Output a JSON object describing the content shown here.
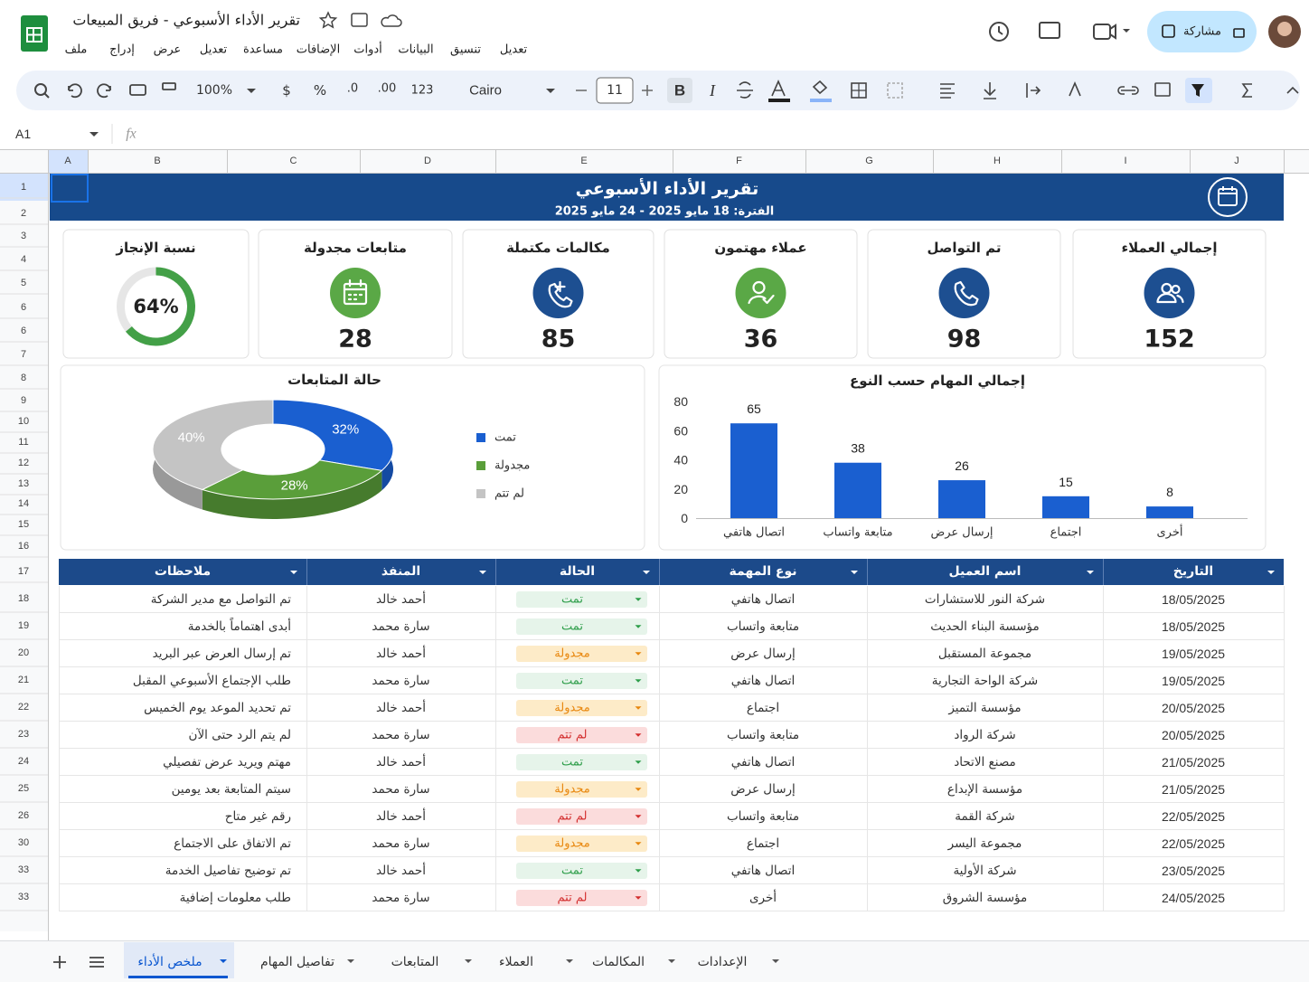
{
  "header": {
    "title": "تقرير الأداء الأسبوعي - فريق المبيعات",
    "menu": [
      "ملف",
      "إدراج",
      "عرض",
      "تعديل",
      "مساعدة",
      "الإضافات",
      "أدوات",
      "البيانات",
      "تنسيق",
      "تعديل"
    ],
    "share": "مشاركة"
  },
  "toolbar": {
    "zoom": "100%",
    "currency": "$",
    "percent": "%",
    "decrease_decimals": ".0",
    "increase_decimals": ".00",
    "number_format": "123",
    "font": "Cairo",
    "font_size": 11,
    "bold": "B",
    "italic": "I"
  },
  "formula_bar": {
    "cell": "A1",
    "fx": "fx"
  },
  "grid": {
    "columns": [
      "A",
      "B",
      "C",
      "D",
      "E",
      "F",
      "G",
      "H",
      "I",
      "J"
    ],
    "rows": [
      1,
      2,
      3,
      4,
      5,
      6,
      6,
      7,
      8,
      9,
      10,
      11,
      12,
      13,
      14,
      15,
      16,
      17,
      18,
      19,
      20,
      21,
      22,
      23,
      24,
      25,
      26,
      30,
      33,
      33
    ]
  },
  "banner": {
    "title": "تقرير الأداء الأسبوعي",
    "period": "الفترة: 18 مايو 2025 - 24 مايو 2025"
  },
  "kpis": [
    {
      "label": "إجمالي العملاء",
      "value": 152,
      "color": "#1d4f91"
    },
    {
      "label": "تم التواصل",
      "value": 98,
      "color": "#1d4f91"
    },
    {
      "label": "عملاء مهتمون",
      "value": 36,
      "color": "#5aa846"
    },
    {
      "label": "مكالمات مكتملة",
      "value": 85,
      "color": "#1d4f91"
    },
    {
      "label": "متابعات مجدولة",
      "value": 28,
      "color": "#5aa846"
    },
    {
      "label": "نسبة الإنجاز",
      "value": 64,
      "value_label": "64%",
      "color": "#43a047",
      "gauge": true
    }
  ],
  "chart_data": [
    {
      "type": "pie",
      "title": "حالة المتابعات",
      "categories": [
        "تمت",
        "مجدولة",
        "لم تتم"
      ],
      "values": [
        32,
        28,
        40
      ],
      "value_labels": [
        "32%",
        "28%",
        "40%"
      ],
      "colors": [
        "#1a5fd0",
        "#5a9e3a",
        "#c4c4c4"
      ],
      "donut": true,
      "three_d": true,
      "legend": "right"
    },
    {
      "type": "bar",
      "title": "إجمالي المهام حسب النوع",
      "categories": [
        "اتصال هاتفي",
        "متابعة واتساب",
        "إرسال عرض",
        "اجتماع",
        "أخرى"
      ],
      "values": [
        65,
        38,
        26,
        15,
        8
      ],
      "color": "#1a5fd0",
      "ylim": [
        0,
        80
      ],
      "yticks": [
        0,
        20,
        40,
        60,
        80
      ]
    }
  ],
  "table": {
    "headers": [
      "التاريخ",
      "اسم العميل",
      "نوع المهمة",
      "الحالة",
      "المنفذ",
      "ملاحظات"
    ],
    "rows": [
      [
        "18/05/2025",
        "شركة النور للاستشارات",
        "اتصال هاتفي",
        "تمت",
        "أحمد خالد",
        "تم التواصل مع مدير الشركة"
      ],
      [
        "18/05/2025",
        "مؤسسة البناء الحديث",
        "متابعة واتساب",
        "تمت",
        "سارة محمد",
        "أبدى اهتماماً بالخدمة"
      ],
      [
        "19/05/2025",
        "مجموعة المستقبل",
        "إرسال عرض",
        "مجدولة",
        "أحمد خالد",
        "تم إرسال العرض عبر البريد"
      ],
      [
        "19/05/2025",
        "شركة الواحة التجارية",
        "اتصال هاتفي",
        "تمت",
        "سارة محمد",
        "طلب الإجتماع الأسبوعي المقبل"
      ],
      [
        "20/05/2025",
        "مؤسسة التميز",
        "اجتماع",
        "مجدولة",
        "أحمد خالد",
        "تم تحديد الموعد يوم الخميس"
      ],
      [
        "20/05/2025",
        "شركة الرواد",
        "متابعة واتساب",
        "لم تتم",
        "سارة محمد",
        "لم يتم الرد حتى الآن"
      ],
      [
        "21/05/2025",
        "مصنع الاتحاد",
        "اتصال هاتفي",
        "تمت",
        "أحمد خالد",
        "مهتم ويريد عرض تفصيلي"
      ],
      [
        "21/05/2025",
        "مؤسسة الإبداع",
        "إرسال عرض",
        "مجدولة",
        "سارة محمد",
        "سيتم المتابعة بعد يومين"
      ],
      [
        "22/05/2025",
        "شركة القمة",
        "متابعة واتساب",
        "لم تتم",
        "أحمد خالد",
        "رقم غير متاح"
      ],
      [
        "22/05/2025",
        "مجموعة اليسر",
        "اجتماع",
        "مجدولة",
        "سارة محمد",
        "تم الاتفاق على الاجتماع"
      ],
      [
        "23/05/2025",
        "شركة الأولية",
        "اتصال هاتفي",
        "تمت",
        "أحمد خالد",
        "تم توضيح تفاصيل الخدمة"
      ],
      [
        "24/05/2025",
        "مؤسسة الشروق",
        "أخرى",
        "لم تتم",
        "سارة محمد",
        "طلب معلومات إضافية"
      ]
    ],
    "status_colors": {
      "تمت": [
        "#e6f4ea",
        "#2e9e4a"
      ],
      "مجدولة": [
        "#fdebc8",
        "#e8870e"
      ],
      "لم تتم": [
        "#fbdcdc",
        "#d32f2f"
      ]
    }
  },
  "tabs": {
    "items": [
      "ملخص الأداء",
      "تفاصيل المهام",
      "المتابعات",
      "العملاء",
      "المكالمات",
      "الإعدادات"
    ],
    "active": 0
  }
}
